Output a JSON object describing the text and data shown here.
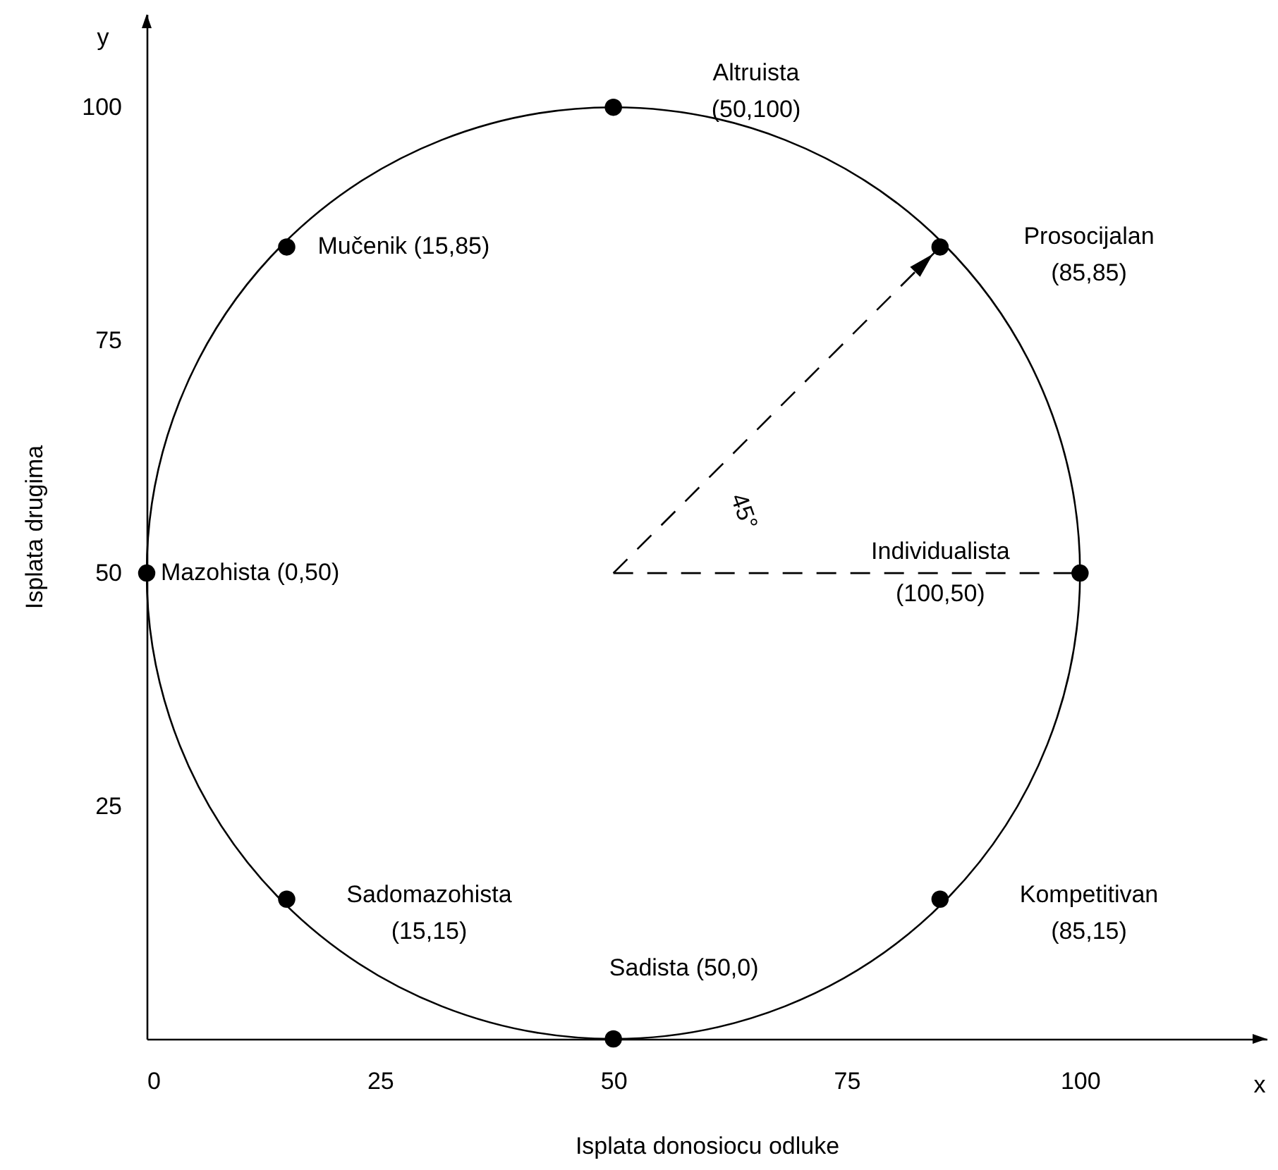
{
  "chart_data": {
    "type": "scatter",
    "xlabel": "Isplata donosiocu odluke",
    "ylabel": "Isplata drugima",
    "xlim": [
      0,
      120
    ],
    "ylim": [
      0,
      110
    ],
    "xticks": [
      0,
      25,
      50,
      75,
      100
    ],
    "yticks": [
      25,
      50,
      75,
      100
    ],
    "series": [
      {
        "type": "line",
        "color": "#000000",
        "line_style": "dashed",
        "x": [
          50,
          85
        ],
        "values": [
          50,
          85
        ]
      },
      {
        "type": "line",
        "color": "#000000",
        "line_style": "dashed",
        "x": [
          50,
          100
        ],
        "values": [
          50,
          50
        ]
      },
      {
        "color": "#000000",
        "marker": "circle",
        "x": [
          50,
          85,
          100,
          85,
          50,
          15,
          0,
          15
        ],
        "values": [
          100,
          85,
          50,
          15,
          0,
          15,
          50,
          85
        ]
      }
    ],
    "annotations": [
      "y",
      "x",
      "45°",
      "Altruista\n(50,100)",
      "Prosocijalan\n(85,85)",
      {
        "text": "Mučenik (15,85)",
        "x": 15,
        "y": 85
      },
      {
        "text": "Individualista\n(100,50)",
        "x": 100,
        "y": 50
      },
      {
        "text": "Mazohista (0,50)",
        "x": 0,
        "y": 50
      },
      {
        "text": "Sadomazohista\n(15,15)",
        "x": 15,
        "y": 15
      },
      "Kompetitivan\n(85,15)",
      {
        "text": "Sadista (50,0)",
        "x": 50,
        "y": 0
      }
    ]
  }
}
